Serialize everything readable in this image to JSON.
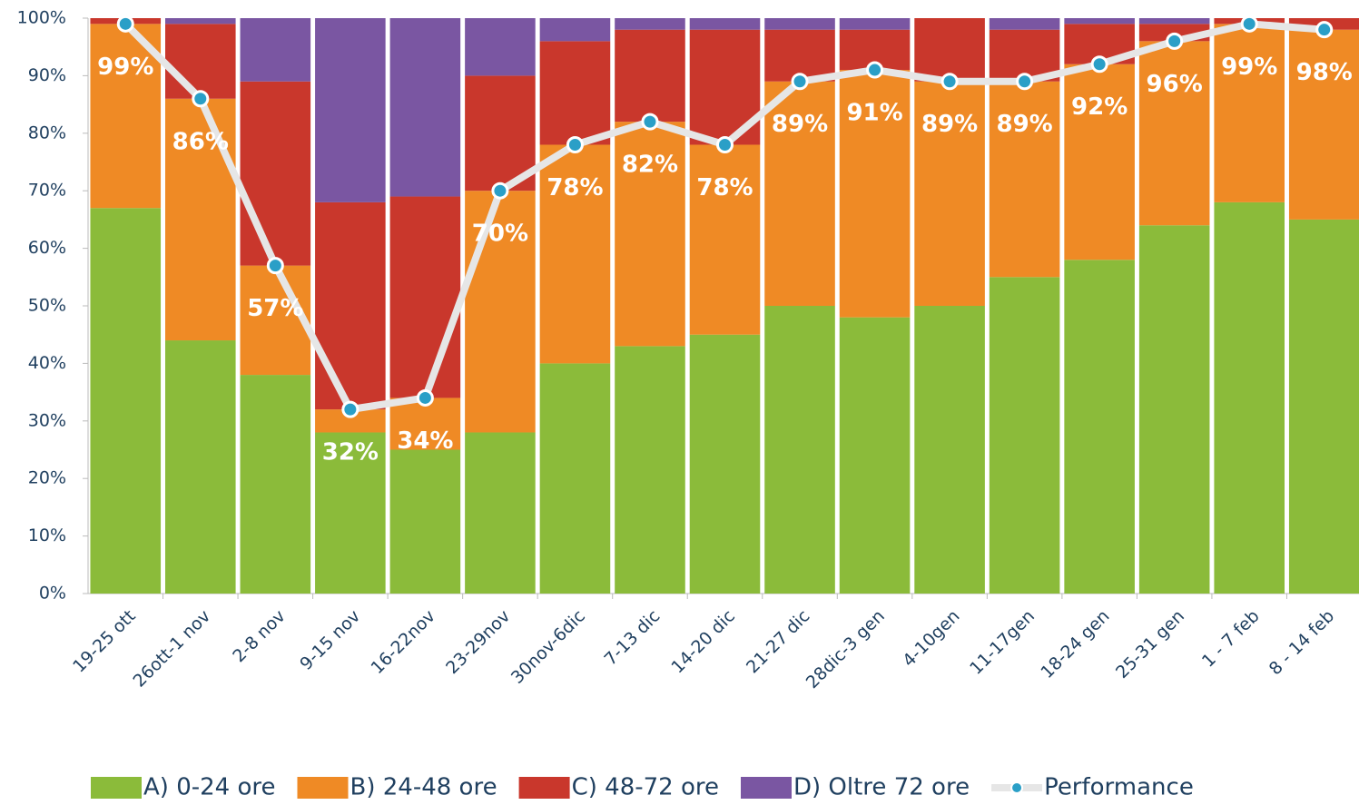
{
  "chart_data": {
    "type": "bar",
    "stacked": true,
    "categories": [
      "19-25 ott",
      "26ott-1 nov",
      "2-8 nov",
      "9-15 nov",
      "16-22nov",
      "23-29nov",
      "30nov-6dic",
      "7-13 dic",
      "14-20 dic",
      "21-27 dic",
      "28dic-3 gen",
      "4-10gen",
      "11-17gen",
      "18-24 gen",
      "25-31 gen",
      "1 - 7 feb",
      "8 - 14 feb"
    ],
    "series": [
      {
        "name": "A) 0-24 ore",
        "color": "#8bbb3a",
        "values": [
          67,
          44,
          38,
          28,
          25,
          28,
          40,
          43,
          45,
          50,
          48,
          50,
          55,
          58,
          64,
          68,
          65
        ]
      },
      {
        "name": "B) 24-48 ore",
        "color": "#ef8a25",
        "values": [
          32,
          42,
          19,
          4,
          9,
          42,
          38,
          39,
          33,
          39,
          43,
          39,
          34,
          34,
          32,
          31,
          33
        ]
      },
      {
        "name": "C) 48-72 ore",
        "color": "#c9372c",
        "values": [
          1,
          13,
          32,
          36,
          35,
          20,
          18,
          16,
          20,
          9,
          7,
          11,
          9,
          7,
          3,
          1,
          2
        ]
      },
      {
        "name": "D) Oltre 72 ore",
        "color": "#7a56a2",
        "values": [
          0,
          1,
          11,
          32,
          31,
          10,
          4,
          2,
          2,
          2,
          2,
          0,
          2,
          1,
          1,
          0,
          0
        ]
      },
      {
        "name": "Performance",
        "type": "line",
        "color": "#e6e6e6",
        "marker_color": "#2a9fc7",
        "values": [
          99,
          86,
          57,
          32,
          34,
          70,
          78,
          82,
          78,
          89,
          91,
          89,
          89,
          92,
          96,
          99,
          98
        ],
        "value_labels": [
          "99%",
          "86%",
          "57%",
          "32%",
          "34%",
          "70%",
          "78%",
          "82%",
          "78%",
          "89%",
          "91%",
          "89%",
          "89%",
          "92%",
          "96%",
          "99%",
          "98%"
        ]
      }
    ],
    "ylim": [
      0,
      100
    ],
    "yticks": [
      {
        "value": 0,
        "label": "0%"
      },
      {
        "value": 10,
        "label": "10%"
      },
      {
        "value": 20,
        "label": "20%"
      },
      {
        "value": 30,
        "label": "30%"
      },
      {
        "value": 40,
        "label": "40%"
      },
      {
        "value": 50,
        "label": "50%"
      },
      {
        "value": 60,
        "label": "60%"
      },
      {
        "value": 70,
        "label": "70%"
      },
      {
        "value": 80,
        "label": "80%"
      },
      {
        "value": 90,
        "label": "90%"
      },
      {
        "value": 100,
        "label": "100%"
      }
    ],
    "legend": "bottom"
  }
}
